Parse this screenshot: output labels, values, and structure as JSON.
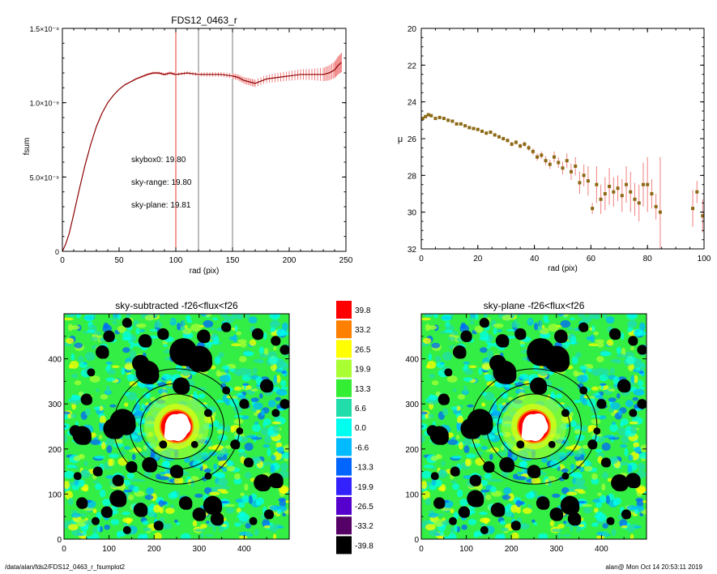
{
  "footer": {
    "left": "/data/alan/fds2/FDS12_0463_r_fsumplot2",
    "right": "alan@  Mon Oct 14 20:53:11 2019"
  },
  "chart_data": [
    {
      "type": "line",
      "title": "FDS12_0463_r",
      "xlabel": "rad (pix)",
      "ylabel": "fsum",
      "xlim": [
        0,
        250
      ],
      "ylim": [
        0,
        1.5e-08
      ],
      "xticks": [
        "0",
        "50",
        "100",
        "150",
        "200",
        "250"
      ],
      "yticks": [
        "0",
        "5.0×10⁻⁹",
        "1.0×10⁻⁸",
        "1.5×10⁻⁸"
      ],
      "ytick_values": [
        0,
        5e-09,
        1e-08,
        1.5e-08
      ],
      "vlines": [
        {
          "x": 100,
          "color": "#e8352a"
        },
        {
          "x": 120,
          "color": "#7a7a7a"
        },
        {
          "x": 150,
          "color": "#7a7a7a"
        }
      ],
      "annotations": [
        {
          "text": "skybox0: 19.80",
          "color": "#000000"
        },
        {
          "text": "sky-range: 19.80",
          "color": "#ff2a2a"
        },
        {
          "text": "sky-plane: 19.81",
          "color": "#33ee33"
        }
      ],
      "series": [
        {
          "x": [
            0,
            3,
            6,
            10,
            15,
            20,
            25,
            30,
            35,
            40,
            45,
            50,
            55,
            60,
            65,
            70,
            75,
            80,
            85,
            90,
            95,
            100,
            110,
            120,
            130,
            140,
            150,
            155,
            160,
            165,
            170,
            180,
            190,
            200,
            210,
            220,
            230,
            235,
            240,
            243,
            246
          ],
          "y": [
            0,
            5e-10,
            1.2e-09,
            2.5e-09,
            4.2e-09,
            5.8e-09,
            7.2e-09,
            8.4e-09,
            9.3e-09,
            1e-08,
            1.05e-08,
            1.09e-08,
            1.12e-08,
            1.14e-08,
            1.16e-08,
            1.175e-08,
            1.19e-08,
            1.2e-08,
            1.2e-08,
            1.19e-08,
            1.2e-08,
            1.19e-08,
            1.2e-08,
            1.19e-08,
            1.19e-08,
            1.19e-08,
            1.18e-08,
            1.17e-08,
            1.15e-08,
            1.14e-08,
            1.13e-08,
            1.16e-08,
            1.17e-08,
            1.18e-08,
            1.19e-08,
            1.19e-08,
            1.19e-08,
            1.2e-08,
            1.22e-08,
            1.25e-08,
            1.27e-08
          ],
          "err": [
            0,
            0,
            0,
            0,
            0,
            0,
            0,
            0,
            0,
            0,
            2e-11,
            3e-11,
            4e-11,
            5e-11,
            6e-11,
            7e-11,
            8e-11,
            8e-11,
            9e-11,
            9e-11,
            1e-10,
            1e-10,
            1.2e-10,
            1.3e-10,
            1.5e-10,
            1.6e-10,
            1.8e-10,
            2e-10,
            2.2e-10,
            2.4e-10,
            2.5e-10,
            2.7e-10,
            3e-10,
            3.2e-10,
            3.5e-10,
            3.8e-10,
            4.5e-10,
            5e-10,
            5.5e-10,
            6e-10,
            6.5e-10
          ],
          "color": "#8b0000",
          "errcolor": "#f08080"
        }
      ]
    },
    {
      "type": "scatter",
      "title": "",
      "xlabel": "rad (pix)",
      "ylabel": "μ",
      "xlim": [
        0,
        100
      ],
      "ylim": [
        32,
        20
      ],
      "xticks": [
        "0",
        "20",
        "40",
        "60",
        "80",
        "100"
      ],
      "yticks": [
        "20",
        "22",
        "24",
        "26",
        "28",
        "30",
        "32"
      ],
      "ytick_values": [
        20,
        22,
        24,
        26,
        28,
        30,
        32
      ],
      "points": {
        "x": [
          0.5,
          1.5,
          2.5,
          3.5,
          5,
          6.5,
          8,
          9.5,
          11,
          12.5,
          14,
          15.5,
          17,
          18.5,
          20,
          21.5,
          23,
          24.5,
          26,
          27.5,
          29,
          30.5,
          32,
          33.5,
          35,
          36.5,
          38,
          39.5,
          41,
          42.5,
          44,
          45.5,
          47,
          48.5,
          50,
          51.5,
          53,
          54.5,
          56,
          57.5,
          59,
          60.5,
          62,
          63.5,
          65,
          66.5,
          68,
          69.5,
          71,
          72.5,
          74,
          75.5,
          77,
          78.5,
          80,
          81.5,
          83,
          84.5,
          96,
          97.5,
          99.5
        ],
        "y": [
          24.9,
          24.8,
          24.7,
          24.75,
          24.9,
          24.85,
          24.9,
          25.0,
          25.05,
          25.2,
          25.2,
          25.3,
          25.4,
          25.45,
          25.5,
          25.6,
          25.7,
          25.65,
          25.8,
          25.9,
          26.0,
          26.1,
          26.3,
          26.2,
          26.4,
          26.3,
          26.5,
          26.7,
          27.0,
          26.9,
          27.2,
          27.4,
          27.0,
          27.3,
          27.6,
          27.2,
          27.8,
          27.5,
          28.4,
          28.0,
          28.3,
          29.8,
          28.5,
          29.3,
          29.0,
          28.6,
          28.9,
          28.7,
          29.1,
          28.5,
          28.9,
          29.3,
          29.5,
          28.5,
          28.5,
          29.0,
          29.7,
          30.0,
          29.8,
          28.9,
          30.2
        ],
        "err": [
          0.05,
          0.05,
          0.05,
          0.05,
          0.05,
          0.05,
          0.05,
          0.05,
          0.05,
          0.06,
          0.06,
          0.06,
          0.07,
          0.07,
          0.08,
          0.08,
          0.08,
          0.09,
          0.09,
          0.1,
          0.1,
          0.11,
          0.12,
          0.12,
          0.14,
          0.14,
          0.16,
          0.18,
          0.2,
          0.2,
          0.25,
          0.25,
          0.3,
          0.3,
          0.35,
          0.4,
          0.45,
          0.5,
          0.6,
          0.6,
          0.8,
          0.3,
          1.0,
          0.8,
          0.9,
          1.0,
          0.8,
          0.7,
          0.9,
          1.0,
          1.1,
          0.9,
          1.0,
          1.2,
          1.5,
          0.8,
          0.7,
          3.0,
          1.0,
          0.6,
          0.9
        ],
        "color": "#8b6914",
        "errcolor": "#f08080"
      }
    },
    {
      "type": "heatmap",
      "title": "sky-subtracted -f26<flux<f26",
      "xlim": [
        0,
        500
      ],
      "ylim": [
        0,
        500
      ],
      "xticks": [
        "0",
        "100",
        "200",
        "300",
        "400"
      ],
      "yticks": [
        "0",
        "100",
        "200",
        "300",
        "400"
      ]
    },
    {
      "type": "heatmap",
      "title": "sky-plane -f26<flux<f26",
      "xlim": [
        0,
        500
      ],
      "ylim": [
        0,
        500
      ],
      "xticks": [
        "0",
        "100",
        "200",
        "300",
        "400"
      ],
      "yticks": [
        "0",
        "100",
        "200",
        "300",
        "400"
      ]
    },
    {
      "type": "colorbar",
      "levels": [
        "39.8",
        "33.2",
        "26.5",
        "19.9",
        "13.3",
        "6.6",
        "0.0",
        "-6.6",
        "-13.3",
        "-19.9",
        "-26.5",
        "-33.2",
        "-39.8"
      ],
      "colors": [
        "#ff0000",
        "#ff8000",
        "#ffff00",
        "#aaff33",
        "#33ee33",
        "#22ddaa",
        "#00ffee",
        "#00bbff",
        "#0066ff",
        "#3322ff",
        "#5500cc",
        "#550066",
        "#000000"
      ]
    }
  ]
}
